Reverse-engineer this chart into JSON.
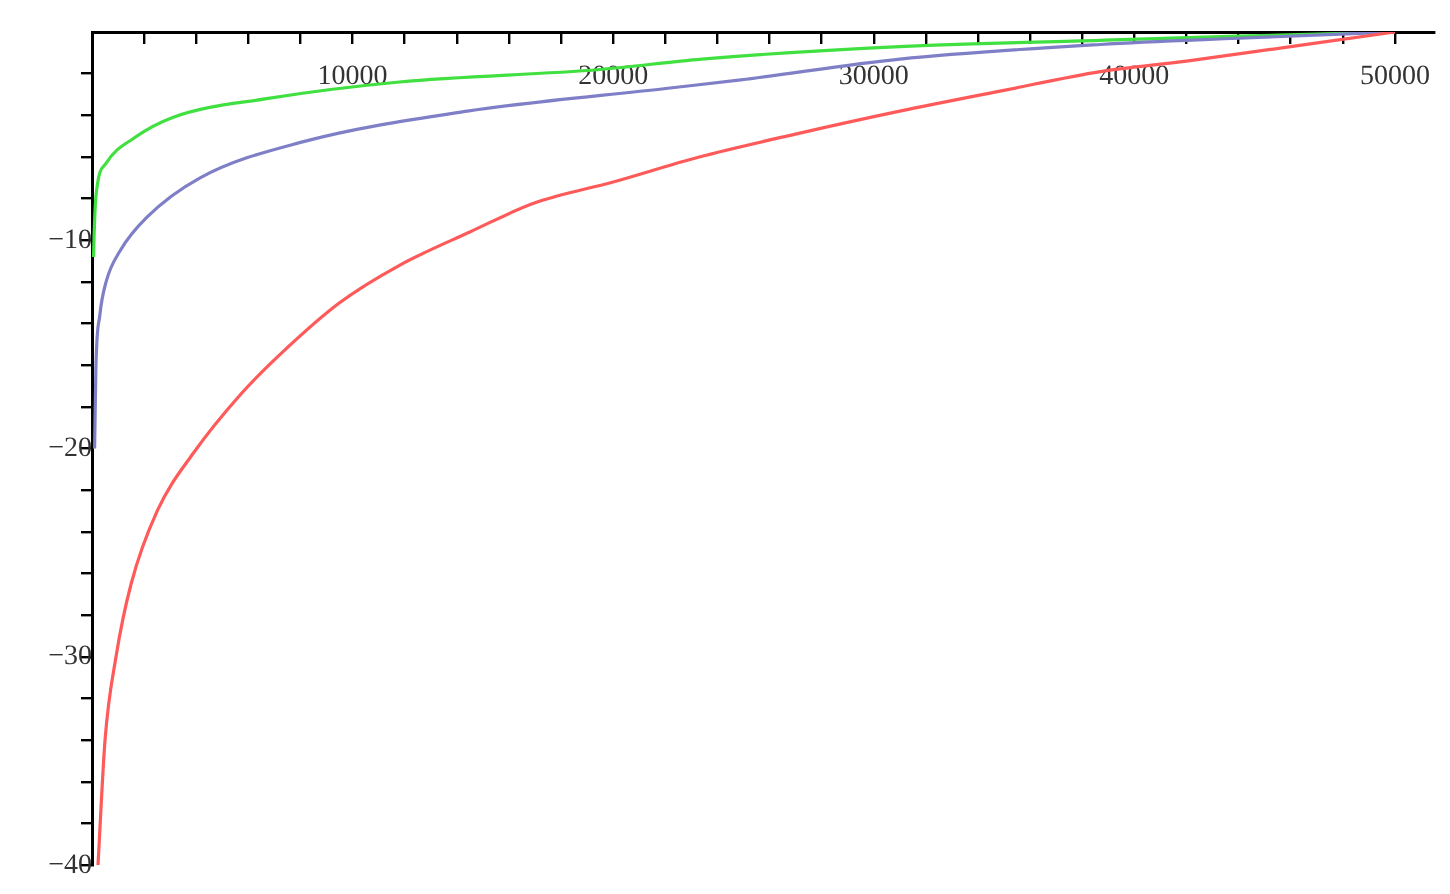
{
  "chart_data": {
    "type": "line",
    "xlim": [
      0,
      51500
    ],
    "ylim": [
      -40,
      0
    ],
    "xticks": [
      {
        "value": 0,
        "label": null
      },
      {
        "value": 2000,
        "label": null
      },
      {
        "value": 4000,
        "label": null
      },
      {
        "value": 6000,
        "label": null
      },
      {
        "value": 8000,
        "label": null
      },
      10000,
      {
        "value": 12000,
        "label": null
      },
      {
        "value": 14000,
        "label": null
      },
      {
        "value": 16000,
        "label": null
      },
      {
        "value": 18000,
        "label": null
      },
      20000,
      {
        "value": 22000,
        "label": null
      },
      {
        "value": 24000,
        "label": null
      },
      {
        "value": 26000,
        "label": null
      },
      {
        "value": 28000,
        "label": null
      },
      30000,
      {
        "value": 32000,
        "label": null
      },
      {
        "value": 34000,
        "label": null
      },
      {
        "value": 36000,
        "label": null
      },
      {
        "value": 38000,
        "label": null
      },
      40000,
      {
        "value": 42000,
        "label": null
      },
      {
        "value": 44000,
        "label": null
      },
      {
        "value": 46000,
        "label": null
      },
      {
        "value": 48000,
        "label": null
      },
      50000
    ],
    "yticks": [
      {
        "value": -40,
        "label": "−40"
      },
      {
        "value": -38,
        "label": null
      },
      {
        "value": -36,
        "label": null
      },
      {
        "value": -34,
        "label": null
      },
      {
        "value": -32,
        "label": null
      },
      {
        "value": -30,
        "label": "−30"
      },
      {
        "value": -28,
        "label": null
      },
      {
        "value": -26,
        "label": null
      },
      {
        "value": -24,
        "label": null
      },
      {
        "value": -22,
        "label": null
      },
      {
        "value": -20,
        "label": "−20"
      },
      {
        "value": -18,
        "label": null
      },
      {
        "value": -16,
        "label": null
      },
      {
        "value": -14,
        "label": null
      },
      {
        "value": -12,
        "label": null
      },
      {
        "value": -10,
        "label": "−10"
      },
      {
        "value": -8,
        "label": null
      },
      {
        "value": -6,
        "label": null
      },
      {
        "value": -4,
        "label": null
      },
      {
        "value": -2,
        "label": null
      }
    ],
    "grid": false,
    "legend": false,
    "marker": "none",
    "line_style": "solid",
    "series": [
      {
        "color": "#ff5a5a",
        "x": [
          230,
          500,
          920,
          1500,
          2500,
          3900,
          5700,
          7200,
          9500,
          11800,
          14500,
          17000,
          20000,
          23300,
          27000,
          31000,
          35000,
          38700,
          42000,
          46000,
          50000
        ],
        "values": [
          -40,
          -34,
          -30,
          -26.5,
          -23,
          -20.2,
          -17.4,
          -15.5,
          -13,
          -11.2,
          -9.6,
          -8.2,
          -7.2,
          -6,
          -4.9,
          -3.8,
          -2.8,
          -1.9,
          -1.4,
          -0.7,
          0
        ]
      },
      {
        "color": "#7f7fc8",
        "x": [
          100,
          150,
          300,
          540,
          1080,
          2100,
          4150,
          8000,
          14400,
          22100,
          24900,
          31000,
          38700,
          44000,
          50000
        ],
        "values": [
          -20,
          -16.1,
          -13.6,
          -12,
          -10.5,
          -8.9,
          -7,
          -5.3,
          -3.8,
          -2.7,
          -2.3,
          -1.3,
          -0.6,
          -0.3,
          0
        ]
      },
      {
        "color": "#40e040",
        "x": [
          60,
          80,
          150,
          540,
          1600,
          3100,
          6700,
          11800,
          19500,
          23400,
          31000,
          38700,
          44000,
          50000
        ],
        "values": [
          -10.8,
          -9.8,
          -7.9,
          -6.3,
          -5.1,
          -4.1,
          -3.2,
          -2.4,
          -1.8,
          -1.3,
          -0.7,
          -0.4,
          -0.2,
          0
        ]
      }
    ]
  }
}
